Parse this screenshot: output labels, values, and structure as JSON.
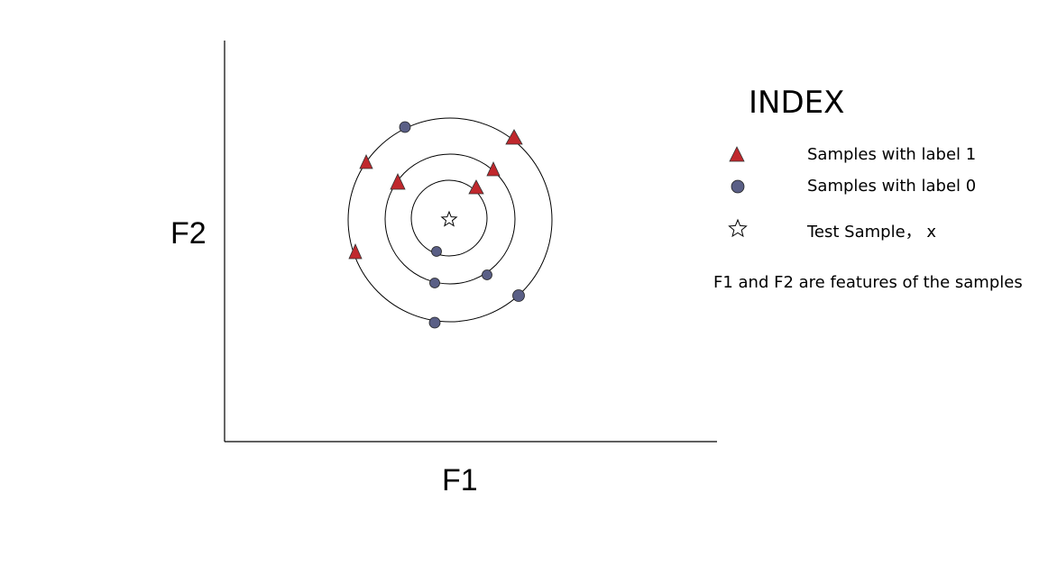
{
  "axes": {
    "x_label": "F1",
    "y_label": "F2"
  },
  "legend": {
    "title": "INDEX",
    "items": [
      {
        "symbol": "triangle-icon",
        "label": "Samples with label 1",
        "color": "#c0282d"
      },
      {
        "symbol": "circle-icon",
        "label": "Samples with label 0",
        "color": "#5a5f86"
      },
      {
        "symbol": "star-icon",
        "label": "Test Sample， x",
        "color": "#ffffff"
      }
    ],
    "note": "F1 and F2 are features of the samples"
  },
  "colors": {
    "label_1": "#c0282d",
    "label_0": "#5a5f86",
    "stroke": "#000000"
  }
}
